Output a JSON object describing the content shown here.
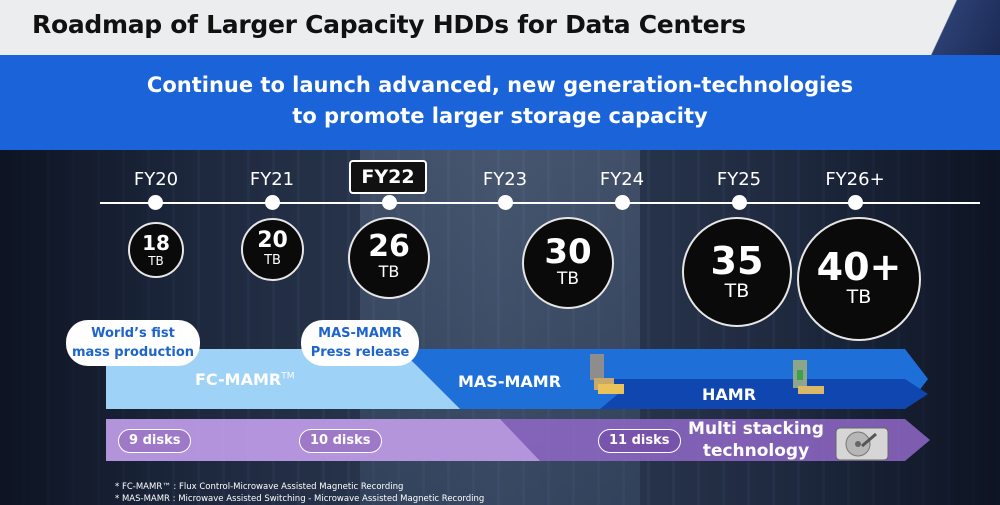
{
  "title": "Roadmap of Larger Capacity HDDs for Data Centers",
  "banner": {
    "line1": "Continue to launch advanced, new generation-technologies",
    "line2": "to promote larger storage capacity"
  },
  "years": [
    "FY20",
    "FY21",
    "FY22",
    "FY23",
    "FY24",
    "FY25",
    "FY26+"
  ],
  "highlight_year": "FY22",
  "capacities": [
    {
      "value": "18",
      "unit": "TB"
    },
    {
      "value": "20",
      "unit": "TB"
    },
    {
      "value": "26",
      "unit": "TB"
    },
    {
      "value": "30",
      "unit": "TB"
    },
    {
      "value": "35",
      "unit": "TB"
    },
    {
      "value": "40+",
      "unit": "TB"
    }
  ],
  "callouts": {
    "mass_production": {
      "line1": "World’s fist",
      "line2": "mass production"
    },
    "press_release": {
      "line1": "MAS-MAMR",
      "line2": "Press release"
    }
  },
  "technologies": {
    "fc_mamr": "FC-MAMR",
    "fc_mamr_tm": "TM",
    "mas_mamr": "MAS-MAMR",
    "hamr": "HAMR"
  },
  "disks": [
    "9 disks",
    "10 disks",
    "11 disks"
  ],
  "multi_stacking": {
    "line1": "Multi stacking",
    "line2": "technology"
  },
  "footnotes": [
    "* FC-MAMR™ : Flux Control-Microwave Assisted Magnetic Recording",
    "* MAS-MAMR : Microwave Assisted Switching - Microwave Assisted Magnetic Recording"
  ],
  "colors": {
    "banner": "#1a63d8",
    "fc_mamr": "#9fd2f7",
    "mas_mamr": "#1f6fd8",
    "hamr": "#0f46b0",
    "disks_band": "#9068c8"
  }
}
